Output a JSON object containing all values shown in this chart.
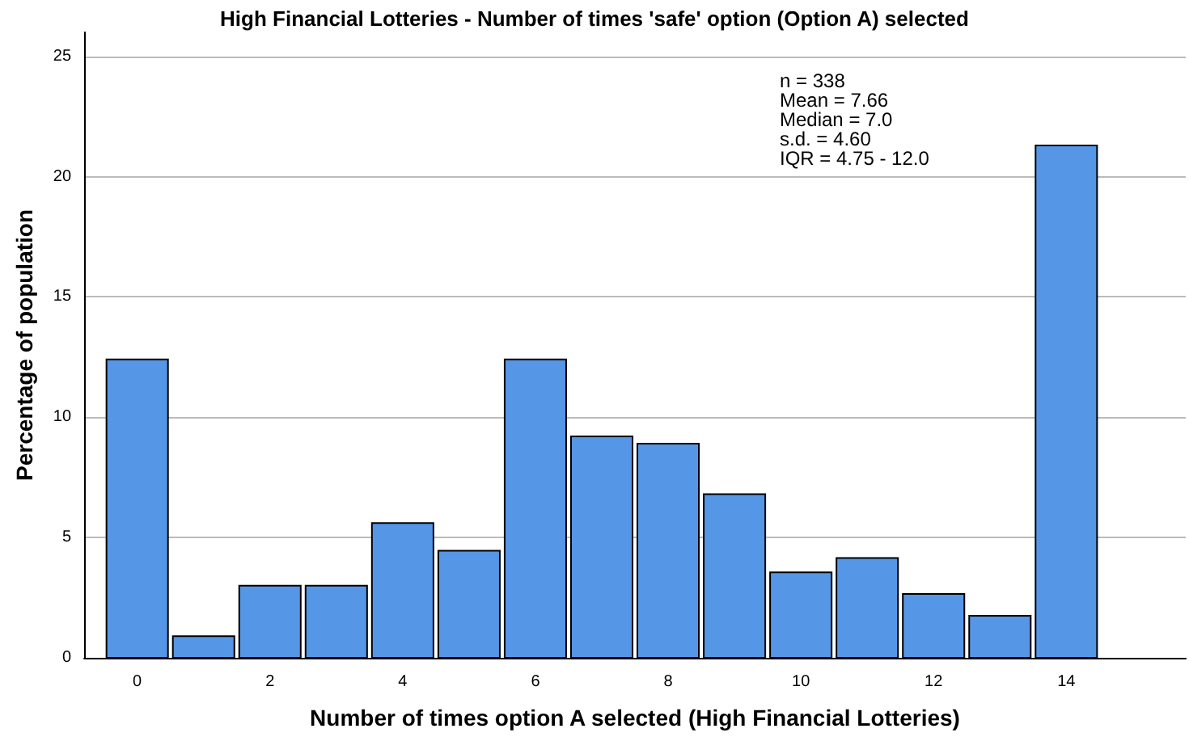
{
  "chart_data": {
    "type": "histogram",
    "title": "High Financial Lotteries - Number of times 'safe' option (Option A) selected",
    "xlabel": "Number of times option A selected (High Financial Lotteries)",
    "ylabel": "Percentage of population",
    "bins": [
      -0.5,
      0.5,
      1.5,
      2.5,
      3.5,
      4.5,
      5.5,
      6.5,
      7.5,
      8.5,
      9.5,
      10.5,
      11.5,
      12.5,
      13.5,
      14.5
    ],
    "values": [
      12.4,
      0.9,
      3.0,
      3.0,
      5.6,
      4.45,
      12.4,
      9.2,
      8.9,
      6.8,
      3.55,
      4.15,
      2.65,
      1.75,
      21.3
    ],
    "color": "#5596e6",
    "xlim": [
      -0.8,
      15.8
    ],
    "xticks": [
      0,
      2,
      4,
      6,
      8,
      10,
      12,
      14
    ],
    "ylim": [
      0,
      26
    ],
    "yticks": [
      0,
      5,
      10,
      15,
      20,
      25
    ],
    "grid": "y",
    "annotations": [
      "n = 338",
      "Mean = 7.66",
      "Median = 7.0",
      "s.d. = 4.60",
      "IQR = 4.75 - 12.0"
    ]
  }
}
